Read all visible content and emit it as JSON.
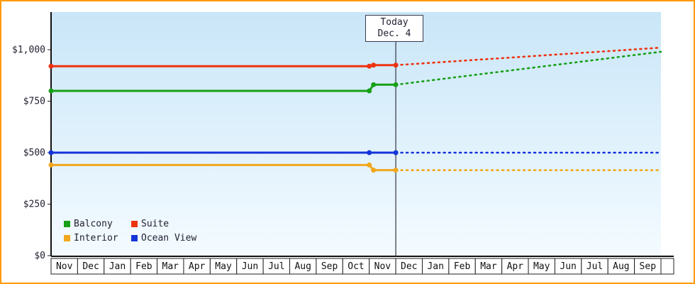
{
  "page": {
    "border_color": "#ff9900"
  },
  "today_label": {
    "line1": "Today",
    "line2": "Dec. 4"
  },
  "legend": {
    "position": "bottom-left",
    "items": [
      {
        "label": "Balcony",
        "color": "#17a017"
      },
      {
        "label": "Suite",
        "color": "#ee3311"
      },
      {
        "label": "Interior",
        "color": "#f2a71c"
      },
      {
        "label": "Ocean View",
        "color": "#1435d8"
      }
    ]
  },
  "chart_data": {
    "type": "line",
    "title": "",
    "xlabel": "",
    "ylabel": "",
    "grid": false,
    "legend_position": "bottom-left",
    "x_categories": [
      "Nov",
      "Dec",
      "Jan",
      "Feb",
      "Mar",
      "Apr",
      "May",
      "Jun",
      "Jul",
      "Aug",
      "Sep",
      "Oct",
      "Nov",
      "Dec",
      "Jan",
      "Feb",
      "Mar",
      "Apr",
      "May",
      "Jun",
      "Jul",
      "Aug",
      "Sep"
    ],
    "y_ticks": [
      {
        "label": "$0",
        "value": 0
      },
      {
        "label": "$250",
        "value": 250
      },
      {
        "label": "$500",
        "value": 500
      },
      {
        "label": "$750",
        "value": 750
      },
      {
        "label": "$1,000",
        "value": 1000
      }
    ],
    "ylim": [
      0,
      1180
    ],
    "today": {
      "label": "Today",
      "date": "Dec. 4",
      "x_month_boundary_index": 13
    },
    "price_change_boundary_index": 12,
    "solid_segment": "price history (first Nov through today)",
    "dotted_segment": "forecast (after today, dotted)",
    "series": [
      {
        "name": "Balcony",
        "color": "#17a017",
        "past_value": 800,
        "current_value": 830,
        "forecast_end_value": 990
      },
      {
        "name": "Suite",
        "color": "#ee3311",
        "past_value": 920,
        "current_value": 925,
        "forecast_end_value": 1010
      },
      {
        "name": "Interior",
        "color": "#f2a71c",
        "past_value": 440,
        "current_value": 415,
        "forecast_end_value": 415
      },
      {
        "name": "Ocean View",
        "color": "#1435d8",
        "past_value": 500,
        "current_value": 500,
        "forecast_end_value": 500
      }
    ]
  }
}
